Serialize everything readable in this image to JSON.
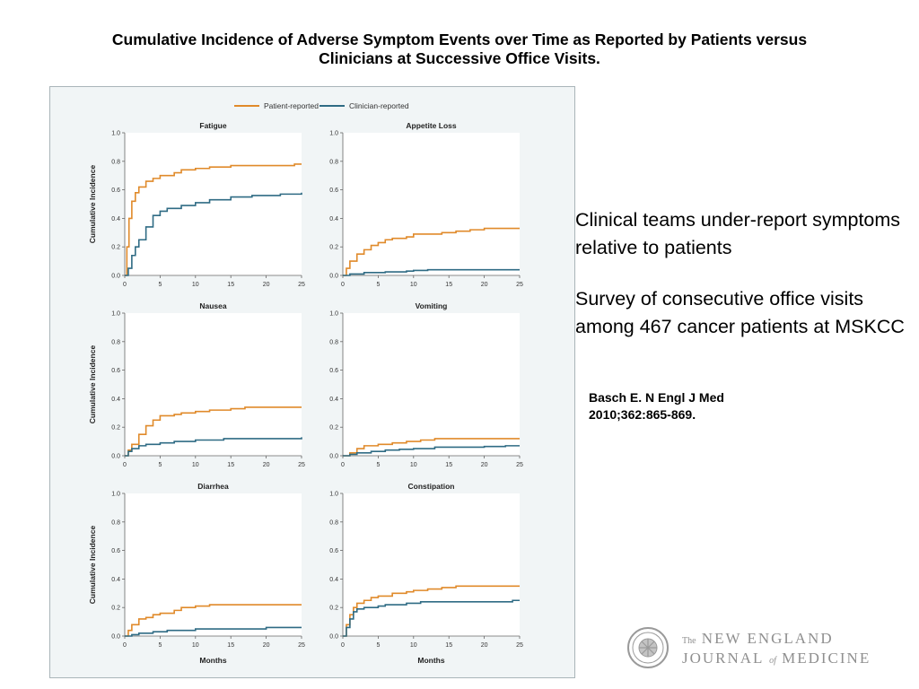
{
  "slide": {
    "title_line1": "Cumulative Incidence of Adverse Symptom Events over Time as Reported by Patients versus",
    "title_line2": "Clinicians at Successive Office Visits.",
    "bullet1": "Clinical teams under-report symptoms relative to patients",
    "bullet2": "Survey of consecutive office visits among 467 cancer patients at MSKCC",
    "citation_line1": "Basch E. N Engl J Med",
    "citation_line2": "2010;362:865-869.",
    "logo": {
      "line1_the": "The",
      "line1_rest": "NEW ENGLAND",
      "line2_a": "JOURNAL",
      "line2_of": "of",
      "line2_b": "MEDICINE"
    }
  },
  "colors": {
    "patient": "#e08a2a",
    "clinician": "#2f6b84",
    "panel_bg": "#f1f5f6",
    "plot_bg": "#ffffff",
    "axis": "#666666"
  },
  "chart_data": {
    "type": "line",
    "step": true,
    "legend": [
      {
        "key": "patient",
        "label": "Patient-reported"
      },
      {
        "key": "clinician",
        "label": "Clinician-reported"
      }
    ],
    "legend_position": "top-center",
    "xlim": [
      0,
      25
    ],
    "ylim": [
      0,
      1.0
    ],
    "xticks": [
      0,
      5,
      10,
      15,
      20,
      25
    ],
    "yticks": [
      "0.0",
      "0.2",
      "0.4",
      "0.6",
      "0.8",
      "1.0"
    ],
    "ylabel": "Cumulative Incidence",
    "xlabel": "Months",
    "grid": false,
    "panels": [
      {
        "title": "Fatigue",
        "patient": [
          [
            0,
            0
          ],
          [
            0.3,
            0.2
          ],
          [
            0.6,
            0.4
          ],
          [
            1,
            0.52
          ],
          [
            1.5,
            0.58
          ],
          [
            2,
            0.62
          ],
          [
            3,
            0.66
          ],
          [
            4,
            0.68
          ],
          [
            5,
            0.7
          ],
          [
            7,
            0.72
          ],
          [
            8,
            0.74
          ],
          [
            10,
            0.75
          ],
          [
            12,
            0.76
          ],
          [
            15,
            0.77
          ],
          [
            20,
            0.77
          ],
          [
            24,
            0.78
          ],
          [
            25,
            0.78
          ]
        ],
        "clinician": [
          [
            0,
            0
          ],
          [
            0.5,
            0.05
          ],
          [
            1,
            0.14
          ],
          [
            1.5,
            0.2
          ],
          [
            2,
            0.25
          ],
          [
            3,
            0.34
          ],
          [
            4,
            0.42
          ],
          [
            5,
            0.45
          ],
          [
            6,
            0.47
          ],
          [
            8,
            0.49
          ],
          [
            10,
            0.51
          ],
          [
            12,
            0.53
          ],
          [
            15,
            0.55
          ],
          [
            18,
            0.56
          ],
          [
            22,
            0.57
          ],
          [
            25,
            0.58
          ]
        ]
      },
      {
        "title": "Appetite Loss",
        "patient": [
          [
            0,
            0
          ],
          [
            0.5,
            0.05
          ],
          [
            1,
            0.1
          ],
          [
            2,
            0.15
          ],
          [
            3,
            0.18
          ],
          [
            4,
            0.21
          ],
          [
            5,
            0.23
          ],
          [
            6,
            0.25
          ],
          [
            7,
            0.26
          ],
          [
            9,
            0.27
          ],
          [
            10,
            0.29
          ],
          [
            14,
            0.3
          ],
          [
            16,
            0.31
          ],
          [
            18,
            0.32
          ],
          [
            20,
            0.33
          ],
          [
            25,
            0.33
          ]
        ],
        "clinician": [
          [
            0,
            0
          ],
          [
            1,
            0.01
          ],
          [
            3,
            0.02
          ],
          [
            6,
            0.025
          ],
          [
            9,
            0.03
          ],
          [
            10,
            0.035
          ],
          [
            12,
            0.04
          ],
          [
            25,
            0.04
          ]
        ]
      },
      {
        "title": "Nausea",
        "patient": [
          [
            0,
            0
          ],
          [
            0.5,
            0.04
          ],
          [
            1,
            0.08
          ],
          [
            2,
            0.15
          ],
          [
            3,
            0.21
          ],
          [
            4,
            0.25
          ],
          [
            5,
            0.28
          ],
          [
            7,
            0.29
          ],
          [
            8,
            0.3
          ],
          [
            10,
            0.31
          ],
          [
            12,
            0.32
          ],
          [
            15,
            0.33
          ],
          [
            17,
            0.34
          ],
          [
            25,
            0.34
          ]
        ],
        "clinician": [
          [
            0,
            0
          ],
          [
            0.5,
            0.03
          ],
          [
            1,
            0.05
          ],
          [
            2,
            0.07
          ],
          [
            3,
            0.08
          ],
          [
            5,
            0.09
          ],
          [
            7,
            0.1
          ],
          [
            10,
            0.11
          ],
          [
            12,
            0.11
          ],
          [
            14,
            0.12
          ],
          [
            24,
            0.12
          ],
          [
            25,
            0.13
          ]
        ]
      },
      {
        "title": "Vomiting",
        "patient": [
          [
            0,
            0
          ],
          [
            1,
            0.02
          ],
          [
            2,
            0.05
          ],
          [
            3,
            0.07
          ],
          [
            5,
            0.08
          ],
          [
            7,
            0.09
          ],
          [
            9,
            0.1
          ],
          [
            11,
            0.11
          ],
          [
            13,
            0.12
          ],
          [
            25,
            0.12
          ]
        ],
        "clinician": [
          [
            0,
            0
          ],
          [
            1,
            0.01
          ],
          [
            2,
            0.02
          ],
          [
            4,
            0.03
          ],
          [
            6,
            0.04
          ],
          [
            8,
            0.045
          ],
          [
            10,
            0.05
          ],
          [
            13,
            0.06
          ],
          [
            20,
            0.065
          ],
          [
            23,
            0.07
          ],
          [
            25,
            0.07
          ]
        ]
      },
      {
        "title": "Diarrhea",
        "patient": [
          [
            0,
            0
          ],
          [
            0.5,
            0.04
          ],
          [
            1,
            0.08
          ],
          [
            2,
            0.12
          ],
          [
            3,
            0.13
          ],
          [
            4,
            0.15
          ],
          [
            5,
            0.16
          ],
          [
            7,
            0.18
          ],
          [
            8,
            0.2
          ],
          [
            10,
            0.21
          ],
          [
            12,
            0.22
          ],
          [
            25,
            0.22
          ]
        ],
        "clinician": [
          [
            0,
            0
          ],
          [
            1,
            0.01
          ],
          [
            2,
            0.02
          ],
          [
            4,
            0.03
          ],
          [
            6,
            0.04
          ],
          [
            10,
            0.05
          ],
          [
            15,
            0.05
          ],
          [
            20,
            0.06
          ],
          [
            25,
            0.06
          ]
        ]
      },
      {
        "title": "Constipation",
        "patient": [
          [
            0,
            0
          ],
          [
            0.5,
            0.08
          ],
          [
            1,
            0.15
          ],
          [
            1.5,
            0.2
          ],
          [
            2,
            0.23
          ],
          [
            3,
            0.25
          ],
          [
            4,
            0.27
          ],
          [
            5,
            0.28
          ],
          [
            7,
            0.3
          ],
          [
            9,
            0.31
          ],
          [
            10,
            0.32
          ],
          [
            12,
            0.33
          ],
          [
            14,
            0.34
          ],
          [
            16,
            0.35
          ],
          [
            25,
            0.35
          ]
        ],
        "clinician": [
          [
            0,
            0
          ],
          [
            0.5,
            0.06
          ],
          [
            1,
            0.12
          ],
          [
            1.5,
            0.17
          ],
          [
            2,
            0.19
          ],
          [
            3,
            0.2
          ],
          [
            5,
            0.21
          ],
          [
            6,
            0.22
          ],
          [
            9,
            0.23
          ],
          [
            11,
            0.24
          ],
          [
            13,
            0.24
          ],
          [
            21,
            0.24
          ],
          [
            24,
            0.25
          ],
          [
            25,
            0.25
          ]
        ]
      }
    ]
  }
}
